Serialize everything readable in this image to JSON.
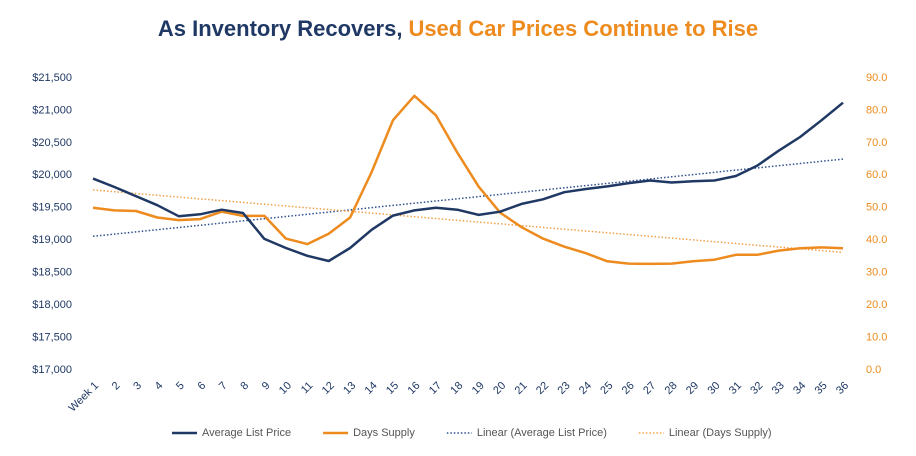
{
  "chart_data": {
    "type": "line",
    "title_parts": [
      {
        "text": "As Inventory Recovers,",
        "color": "#1f3864"
      },
      {
        "text": "Used Car Prices Continue to Rise",
        "color": "#ed8b1f"
      }
    ],
    "categories": [
      "Week 1",
      "2",
      "3",
      "4",
      "5",
      "6",
      "7",
      "8",
      "9",
      "10",
      "11",
      "12",
      "13",
      "14",
      "15",
      "16",
      "17",
      "18",
      "19",
      "20",
      "21",
      "22",
      "23",
      "24",
      "25",
      "26",
      "27",
      "28",
      "29",
      "30",
      "31",
      "32",
      "33",
      "34",
      "35",
      "36"
    ],
    "series": [
      {
        "name": "Average List Price",
        "color": "#1f3864",
        "style": "solid",
        "axis": "y",
        "values": [
          19950,
          19820,
          19680,
          19540,
          19370,
          19400,
          19470,
          19420,
          19020,
          18880,
          18760,
          18680,
          18880,
          19160,
          19380,
          19460,
          19500,
          19470,
          19390,
          19440,
          19560,
          19630,
          19740,
          19790,
          19830,
          19880,
          19920,
          19890,
          19910,
          19920,
          19990,
          20150,
          20380,
          20590,
          20850,
          21120
        ]
      },
      {
        "name": "Days Supply",
        "color": "#ed8b1f",
        "style": "solid",
        "axis": "y2",
        "values": [
          50,
          49.2,
          49,
          47,
          46.2,
          46.5,
          48.8,
          47.5,
          47.5,
          40.5,
          38.8,
          42,
          47,
          61,
          77,
          84.5,
          78.5,
          67,
          56.5,
          48.5,
          44,
          40.5,
          38,
          36,
          33.5,
          32.8,
          32.7,
          32.8,
          33.5,
          34,
          35.5,
          35.5,
          36.8,
          37.5,
          37.8,
          37.5
        ]
      },
      {
        "name": "Linear (Average List Price)",
        "color": "#2f4f8f",
        "style": "dotted",
        "axis": "y",
        "values": [
          19060,
          19094,
          19128,
          19162,
          19196,
          19230,
          19264,
          19298,
          19332,
          19366,
          19400,
          19434,
          19468,
          19502,
          19536,
          19570,
          19604,
          19638,
          19672,
          19706,
          19740,
          19774,
          19808,
          19842,
          19876,
          19910,
          19944,
          19978,
          20012,
          20046,
          20080,
          20114,
          20148,
          20182,
          20216,
          20250
        ]
      },
      {
        "name": "Linear (Days Supply)",
        "color": "#f0a04b",
        "style": "dotted",
        "axis": "y2",
        "values": [
          55.5,
          54.95,
          54.4,
          53.85,
          53.3,
          52.75,
          52.2,
          51.65,
          51.1,
          50.55,
          50,
          49.45,
          48.9,
          48.35,
          47.8,
          47.25,
          46.7,
          46.15,
          45.6,
          45.05,
          44.5,
          43.95,
          43.4,
          42.85,
          42.3,
          41.75,
          41.2,
          40.65,
          40.1,
          39.55,
          39,
          38.45,
          37.9,
          37.35,
          36.8,
          36.25
        ]
      }
    ],
    "ylim": [
      17000,
      21500
    ],
    "yticks": [
      {
        "value": 17000,
        "label": "$17,000"
      },
      {
        "value": 17500,
        "label": "$17,500"
      },
      {
        "value": 18000,
        "label": "$18,000"
      },
      {
        "value": 18500,
        "label": "$18,500"
      },
      {
        "value": 19000,
        "label": "$19,000"
      },
      {
        "value": 19500,
        "label": "$19,500"
      },
      {
        "value": 20000,
        "label": "$20,000"
      },
      {
        "value": 20500,
        "label": "$20,500"
      },
      {
        "value": 21000,
        "label": "$21,000"
      },
      {
        "value": 21500,
        "label": "$21,500"
      }
    ],
    "y2lim": [
      0,
      90
    ],
    "y2ticks": [
      {
        "value": 0,
        "label": "0.0"
      },
      {
        "value": 10,
        "label": "10.0"
      },
      {
        "value": 20,
        "label": "20.0"
      },
      {
        "value": 30,
        "label": "30.0"
      },
      {
        "value": 40,
        "label": "40.0"
      },
      {
        "value": 50,
        "label": "50.0"
      },
      {
        "value": 60,
        "label": "60.0"
      },
      {
        "value": 70,
        "label": "70.0"
      },
      {
        "value": 80,
        "label": "80.0"
      },
      {
        "value": 90,
        "label": "90.0"
      }
    ],
    "grid": false,
    "legend": "bottom"
  }
}
